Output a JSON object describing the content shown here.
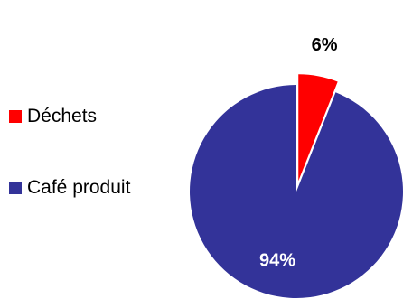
{
  "chart_data": {
    "type": "pie",
    "categories": [
      "Déchets",
      "Café produit"
    ],
    "values": [
      6,
      94
    ],
    "data_labels": [
      "6%",
      "94%"
    ],
    "colors": [
      "#ff0000",
      "#333399"
    ],
    "exploded": "Déchets",
    "legend_position": "left",
    "data_label_colors": [
      "#000000",
      "#ffffff"
    ]
  }
}
